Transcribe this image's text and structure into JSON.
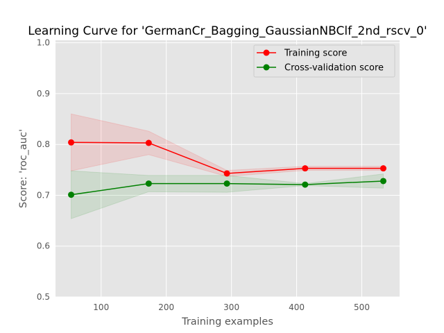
{
  "chart_data": {
    "type": "line",
    "title": "Learning Curve for 'GermanCr_Bagging_GaussianNBClf_2nd_rscv_0'",
    "xlabel": "Training examples",
    "ylabel": "Score: 'roc_auc'",
    "xlim": [
      30,
      558
    ],
    "ylim": [
      0.5,
      1.005
    ],
    "x_ticks": [
      100,
      200,
      300,
      400,
      500
    ],
    "y_ticks": [
      0.5,
      0.6,
      0.7,
      0.8,
      0.9,
      1.0
    ],
    "y_tick_labels": [
      "0.5",
      "0.6",
      "0.7",
      "0.8",
      "0.9",
      "1.0"
    ],
    "grid": true,
    "legend_position": "top-right",
    "x": [
      54,
      173,
      293,
      413,
      533
    ],
    "series": [
      {
        "name": "Training score",
        "color": "#ff0000",
        "values": [
          0.804,
          0.803,
          0.743,
          0.753,
          0.753
        ],
        "band_upper": [
          0.86,
          0.826,
          0.749,
          0.757,
          0.757
        ],
        "band_lower": [
          0.748,
          0.78,
          0.737,
          0.749,
          0.749
        ]
      },
      {
        "name": "Cross-validation score",
        "color": "#008000",
        "values": [
          0.701,
          0.723,
          0.723,
          0.721,
          0.728
        ],
        "band_upper": [
          0.748,
          0.739,
          0.739,
          0.723,
          0.742
        ],
        "band_lower": [
          0.654,
          0.707,
          0.706,
          0.719,
          0.714
        ]
      }
    ]
  }
}
